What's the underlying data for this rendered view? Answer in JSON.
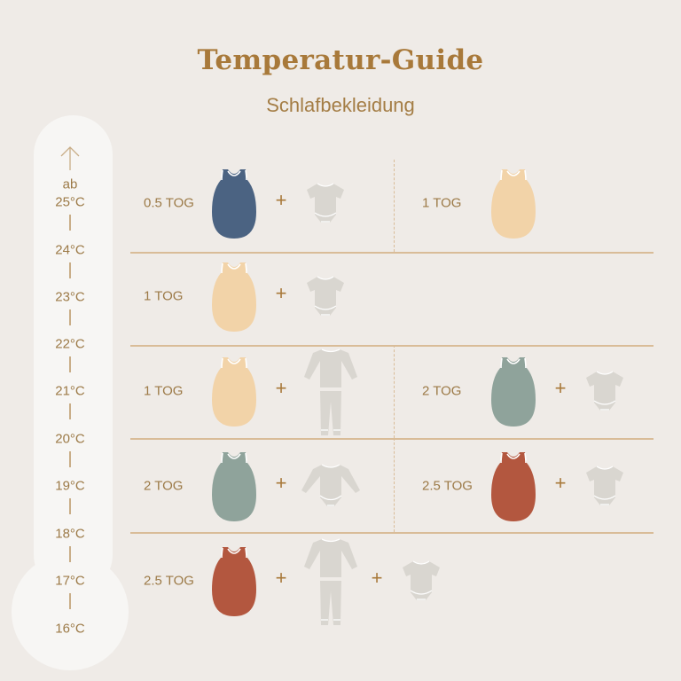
{
  "header": {
    "title": "Temperatur-Guide",
    "subtitle": "Schlafbekleidung"
  },
  "thermometer": {
    "prefix": "ab",
    "labels": [
      "25°C",
      "24°C",
      "23°C",
      "22°C",
      "21°C",
      "20°C",
      "19°C",
      "18°C",
      "17°C",
      "16°C"
    ]
  },
  "colors": {
    "navy": "#4b6382",
    "peach": "#f2d3a8",
    "sage": "#8fa39b",
    "rust": "#b3573f",
    "clothing": "#d9d6d0",
    "accent": "#a8793a"
  },
  "rows": [
    {
      "options": [
        {
          "tog": "0.5 TOG",
          "sack": "navy",
          "clothes": [
            "short-sleeve-bodysuit"
          ]
        },
        {
          "tog": "1 TOG",
          "sack": "peach",
          "clothes": []
        }
      ]
    },
    {
      "options": [
        {
          "tog": "1 TOG",
          "sack": "peach",
          "clothes": [
            "short-sleeve-bodysuit"
          ]
        }
      ]
    },
    {
      "options": [
        {
          "tog": "1 TOG",
          "sack": "peach",
          "clothes": [
            "pajamas"
          ]
        },
        {
          "tog": "2 TOG",
          "sack": "sage",
          "clothes": [
            "short-sleeve-bodysuit"
          ]
        }
      ]
    },
    {
      "options": [
        {
          "tog": "2 TOG",
          "sack": "sage",
          "clothes": [
            "long-sleeve-bodysuit"
          ]
        },
        {
          "tog": "2.5 TOG",
          "sack": "rust",
          "clothes": [
            "short-sleeve-bodysuit"
          ]
        }
      ]
    },
    {
      "options": [
        {
          "tog": "2.5 TOG",
          "sack": "rust",
          "clothes": [
            "pajamas",
            "short-sleeve-bodysuit"
          ]
        }
      ]
    }
  ],
  "plus": "+"
}
